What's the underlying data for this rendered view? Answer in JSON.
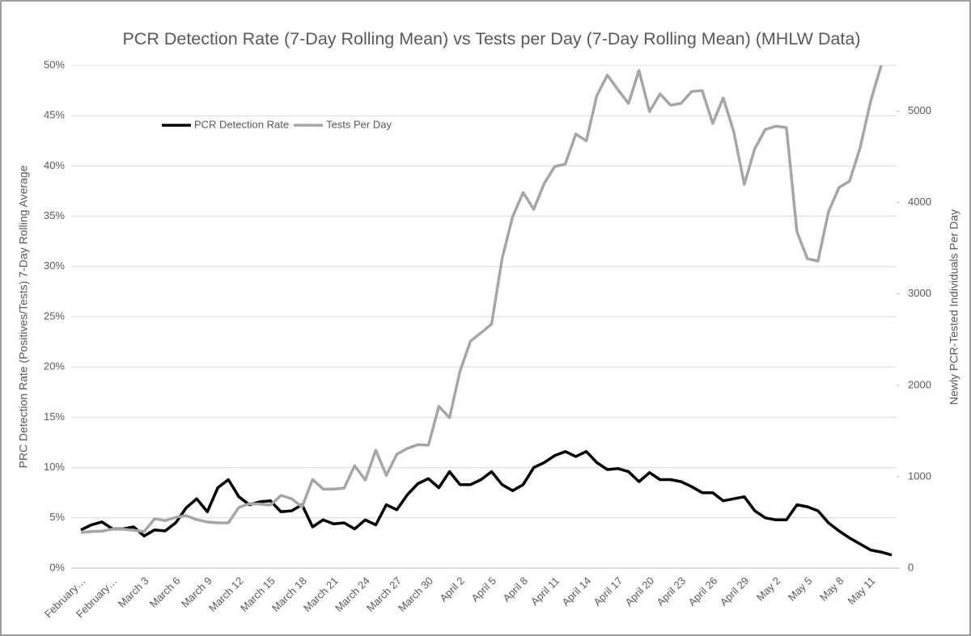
{
  "chart_data": {
    "type": "line",
    "title": "PCR Detection Rate (7-Day Rolling Mean) vs Tests per Day (7-Day Rolling Mean) (MHLW Data)",
    "y_label": "PRC Detection Rate (Positives/Tests) 7-Day Rolling Average",
    "y2_label": "Newly PCR-Tested Individuals Per Day",
    "categories": [
      "February…",
      null,
      null,
      "February…",
      null,
      null,
      "March 3",
      null,
      null,
      "March 6",
      null,
      null,
      "March 9",
      null,
      null,
      "March 12",
      null,
      null,
      "March 15",
      null,
      null,
      "March 18",
      null,
      null,
      "March 21",
      null,
      null,
      "March 24",
      null,
      null,
      "March 27",
      null,
      null,
      "March 30",
      null,
      null,
      "April 2",
      null,
      null,
      "April 5",
      null,
      null,
      "April 8",
      null,
      null,
      "April 11",
      null,
      null,
      "April 14",
      null,
      null,
      "April 17",
      null,
      null,
      "April 20",
      null,
      null,
      "April 23",
      null,
      null,
      "April 26",
      null,
      null,
      "April 29",
      null,
      null,
      "May 2",
      null,
      null,
      "May 5",
      null,
      null,
      "May 8",
      null,
      null,
      "May 11",
      null,
      null
    ],
    "series": [
      {
        "name": "PCR Detection Rate",
        "color": "#000000",
        "values": [
          3.8,
          4.3,
          4.6,
          3.9,
          3.9,
          4.1,
          3.2,
          3.8,
          3.7,
          4.5,
          6.0,
          6.9,
          5.6,
          8.0,
          8.8,
          7.1,
          6.3,
          6.6,
          6.7,
          5.6,
          5.7,
          6.3,
          4.1,
          4.8,
          4.4,
          4.5,
          3.9,
          4.8,
          4.3,
          6.3,
          5.8,
          7.3,
          8.4,
          8.9,
          8.0,
          9.6,
          8.3,
          8.3,
          8.8,
          9.6,
          8.3,
          7.7,
          8.3,
          10.0,
          10.5,
          11.2,
          11.6,
          11.1,
          11.6,
          10.5,
          9.8,
          9.9,
          9.6,
          8.6,
          9.5,
          8.8,
          8.8,
          8.6,
          8.1,
          7.5,
          7.5,
          6.7,
          6.9,
          7.1,
          5.7,
          5.0,
          4.8,
          4.8,
          6.3,
          6.1,
          5.7,
          4.5,
          3.7,
          3.0,
          2.4,
          1.8,
          1.6,
          1.3
        ]
      },
      {
        "name": "Tests Per Day",
        "color": "#a6a6a6",
        "axis": "y2",
        "values": [
          390,
          400,
          405,
          425,
          425,
          415,
          400,
          540,
          520,
          555,
          575,
          530,
          505,
          495,
          495,
          665,
          705,
          700,
          690,
          795,
          760,
          670,
          970,
          865,
          865,
          875,
          1120,
          965,
          1290,
          1015,
          1245,
          1310,
          1350,
          1345,
          1770,
          1645,
          2155,
          2485,
          2575,
          2670,
          3385,
          3845,
          4110,
          3925,
          4210,
          4395,
          4420,
          4750,
          4675,
          5170,
          5395,
          5235,
          5085,
          5445,
          4995,
          5190,
          5065,
          5085,
          5215,
          5225,
          4865,
          5145,
          4775,
          4200,
          4590,
          4800,
          4835,
          4820,
          3680,
          3385,
          3360,
          3900,
          4165,
          4235,
          4600,
          5110,
          5500,
          null
        ]
      }
    ],
    "ylim": [
      0,
      50
    ],
    "yticks": [
      {
        "value": 0,
        "label": "0%"
      },
      {
        "value": 5,
        "label": "5%"
      },
      {
        "value": 10,
        "label": "10%"
      },
      {
        "value": 15,
        "label": "15%"
      },
      {
        "value": 20,
        "label": "20%"
      },
      {
        "value": 25,
        "label": "25%"
      },
      {
        "value": 30,
        "label": "30%"
      },
      {
        "value": 35,
        "label": "35%"
      },
      {
        "value": 40,
        "label": "40%"
      },
      {
        "value": 45,
        "label": "45%"
      },
      {
        "value": 50,
        "label": "50%"
      }
    ],
    "y2lim": [
      0,
      5500
    ],
    "y2ticks": [
      0,
      1000,
      2000,
      3000,
      4000,
      5000
    ],
    "grid": true,
    "legend": "top-left"
  }
}
